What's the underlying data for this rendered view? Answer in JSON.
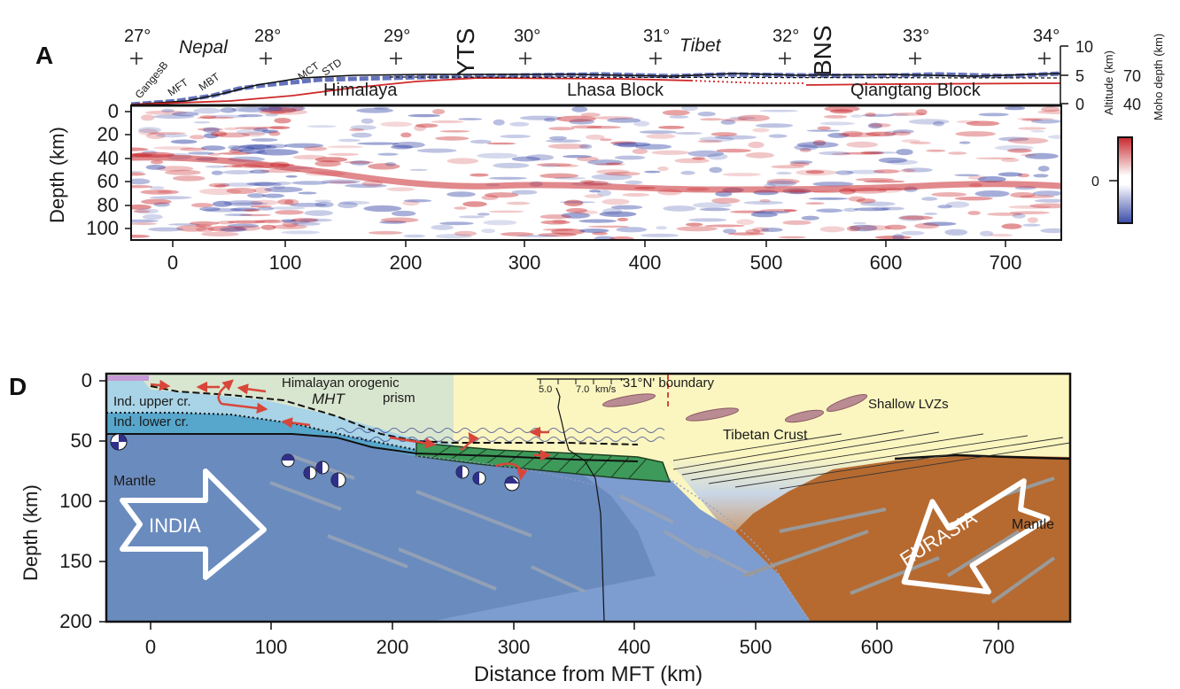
{
  "panel_a": {
    "letter": "A",
    "latitudes": [
      "27°",
      "28°",
      "29°",
      "30°",
      "31°",
      "32°",
      "33°",
      "34°"
    ],
    "region_nepal": "Nepal",
    "region_tibet": "Tibet",
    "structures": [
      "GangesB",
      "MFT",
      "MBT",
      "MCT",
      "STD"
    ],
    "yts": "YTS",
    "bns": "BNS",
    "blocks": [
      "Himalaya",
      "Lhasa Block",
      "Qiangtang Block"
    ],
    "altitude_ticks": [
      "10",
      "5",
      "0"
    ],
    "moho_ticks": [
      "70",
      "40"
    ],
    "altitude_label": "Altitude (km)",
    "moho_label": "Moho depth (km)",
    "depth_label": "Depth (km)",
    "depth_ticks": [
      "0",
      "20",
      "40",
      "60",
      "80",
      "100"
    ],
    "x_ticks": [
      "0",
      "100",
      "200",
      "300",
      "400",
      "500",
      "600",
      "700"
    ],
    "colorbar_zero": "0",
    "colors": {
      "positive": "#c8282d",
      "negative": "#3a4aa8"
    }
  },
  "panel_d": {
    "letter": "D",
    "depth_label": "Depth (km)",
    "depth_ticks": [
      "0",
      "50",
      "100",
      "150",
      "200"
    ],
    "x_ticks": [
      "0",
      "100",
      "200",
      "300",
      "400",
      "500",
      "600",
      "700"
    ],
    "x_label": "Distance from MFT (km)",
    "labels": {
      "prism1": "Himalayan orogenic",
      "prism2": "prism",
      "mht": "MHT",
      "upper": "Ind. upper cr.",
      "lower": "Ind. lower cr.",
      "mantle_india": "Mantle",
      "india": "INDIA",
      "boundary": "'31°N' boundary",
      "lvz": "Shallow LVZs",
      "tibetan_crust": "Tibetan Crust",
      "mantle_eurasia": "Mantle",
      "eurasia": "EURASIA",
      "vel_low": "5.0",
      "vel_high": "7.0",
      "vel_unit": "km/s"
    },
    "colors": {
      "indian_mantle": "#6a8bbe",
      "eurasian_mantle": "#b66a30",
      "tibetan_crust": "#fbf6c0",
      "prism": "#d9e6cf",
      "upper_crust": "#a9d3e6",
      "lower_crust": "#57a6cc",
      "eclogite": "#3d9a5a"
    }
  }
}
